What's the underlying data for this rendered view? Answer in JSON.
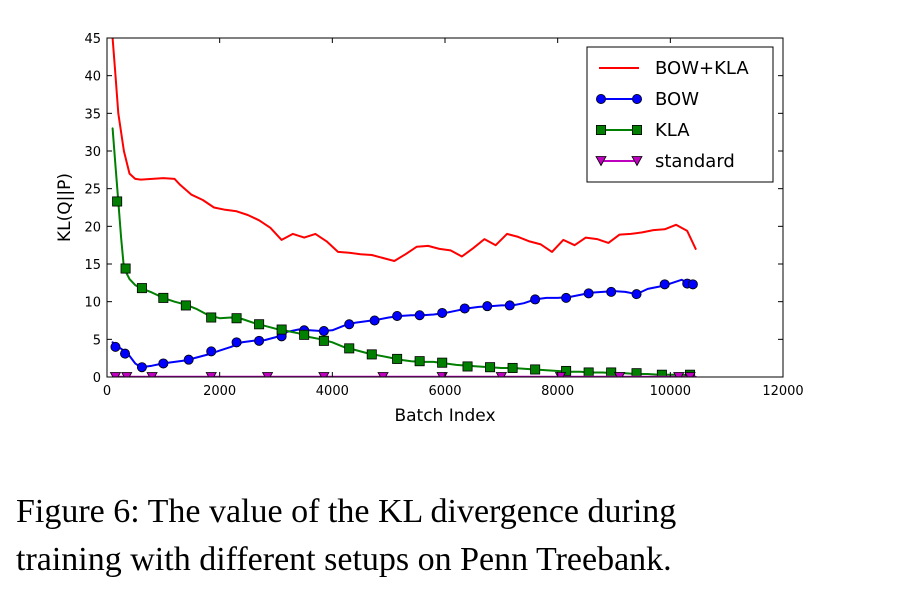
{
  "caption": {
    "line1": "Figure 6: The value of the KL divergence during",
    "line2": "training with different setups on Penn Treebank."
  },
  "chart_data": {
    "type": "line",
    "xlabel": "Batch Index",
    "ylabel": "KL(Q||P)",
    "xlim": [
      0,
      12000
    ],
    "ylim": [
      0,
      45
    ],
    "xticks": [
      0,
      2000,
      4000,
      6000,
      8000,
      10000,
      12000
    ],
    "yticks": [
      0,
      5,
      10,
      15,
      20,
      25,
      30,
      35,
      40,
      45
    ],
    "grid": false,
    "legend_position": "top-right",
    "series": [
      {
        "name": "BOW+KLA",
        "color": "#ff0000",
        "marker": "none",
        "x": [
          100,
          150,
          200,
          300,
          400,
          500,
          600,
          800,
          1000,
          1200,
          1300,
          1500,
          1700,
          1900,
          2100,
          2300,
          2500,
          2700,
          2900,
          3100,
          3300,
          3500,
          3700,
          3900,
          4100,
          4300,
          4500,
          4700,
          4900,
          5100,
          5300,
          5500,
          5700,
          5900,
          6100,
          6300,
          6500,
          6700,
          6900,
          7100,
          7300,
          7500,
          7700,
          7900,
          8100,
          8300,
          8500,
          8700,
          8900,
          9100,
          9300,
          9500,
          9700,
          9900,
          10100,
          10300,
          10450
        ],
        "y": [
          45,
          40,
          35,
          30,
          27,
          26.3,
          26.2,
          26.3,
          26.4,
          26.3,
          25.5,
          24.2,
          23.5,
          22.5,
          22.2,
          22.0,
          21.5,
          20.8,
          19.8,
          18.2,
          19.0,
          18.5,
          19.0,
          18.0,
          16.6,
          16.5,
          16.3,
          16.2,
          15.8,
          15.4,
          16.3,
          17.3,
          17.4,
          17.0,
          16.8,
          16.0,
          17.1,
          18.3,
          17.5,
          19.0,
          18.6,
          18.0,
          17.6,
          16.6,
          18.2,
          17.5,
          18.5,
          18.3,
          17.8,
          18.9,
          19.0,
          19.2,
          19.5,
          19.6,
          20.2,
          19.4,
          17.0
        ]
      },
      {
        "name": "BOW",
        "color": "#0000ff",
        "marker": "circle",
        "x": [
          100,
          200,
          300,
          400,
          500,
          600,
          800,
          1000,
          1200,
          1400,
          1600,
          1800,
          2000,
          2200,
          2400,
          2600,
          2800,
          3000,
          3200,
          3400,
          3600,
          3800,
          4000,
          4200,
          4400,
          4600,
          4800,
          5000,
          5200,
          5400,
          5600,
          5800,
          6000,
          6200,
          6400,
          6600,
          6800,
          7000,
          7200,
          7400,
          7600,
          7800,
          8000,
          8200,
          8400,
          8600,
          8800,
          9000,
          9200,
          9400,
          9600,
          9800,
          10000,
          10200,
          10300,
          10400
        ],
        "y": [
          4.6,
          4.0,
          3.5,
          2.8,
          1.8,
          1.3,
          1.5,
          1.8,
          2.0,
          2.2,
          2.6,
          3.0,
          3.5,
          4.0,
          4.6,
          4.8,
          4.9,
          5.3,
          6.0,
          6.3,
          6.2,
          6.1,
          6.2,
          6.8,
          7.2,
          7.4,
          7.6,
          7.9,
          8.1,
          8.2,
          8.2,
          8.3,
          8.5,
          8.8,
          9.1,
          9.3,
          9.4,
          9.5,
          9.5,
          9.8,
          10.3,
          10.5,
          10.5,
          10.6,
          10.9,
          11.2,
          11.3,
          11.4,
          11.3,
          11.0,
          11.7,
          12.0,
          12.4,
          12.9,
          12.5,
          12.3
        ],
        "marker_x": [
          150,
          320,
          620,
          1000,
          1450,
          1850,
          2300,
          2700,
          3100,
          3500,
          3850,
          4300,
          4750,
          5150,
          5550,
          5950,
          6350,
          6750,
          7150,
          7600,
          8150,
          8550,
          8950,
          9400,
          9900,
          10300,
          10400
        ],
        "marker_y": [
          4.0,
          3.1,
          1.3,
          1.8,
          2.3,
          3.4,
          4.6,
          4.8,
          5.4,
          6.2,
          6.1,
          7.0,
          7.5,
          8.1,
          8.2,
          8.5,
          9.1,
          9.4,
          9.5,
          10.3,
          10.5,
          11.1,
          11.3,
          11.0,
          12.3,
          12.4,
          12.3
        ]
      },
      {
        "name": "KLA",
        "color": "#007f00",
        "marker": "square",
        "x": [
          100,
          150,
          200,
          250,
          300,
          400,
          500,
          600,
          800,
          1000,
          1200,
          1400,
          1600,
          1800,
          2000,
          2200,
          2400,
          2600,
          2800,
          3000,
          3200,
          3400,
          3600,
          3800,
          4000,
          4200,
          4400,
          4600,
          4800,
          5000,
          5200,
          5400,
          5600,
          5800,
          6000,
          6200,
          6400,
          6600,
          6800,
          7000,
          7200,
          7400,
          7600,
          7800,
          8000,
          8200,
          8400,
          8600,
          8800,
          9000,
          9200,
          9400,
          9600,
          9800,
          10000,
          10200,
          10400
        ],
        "y": [
          33,
          28,
          23.3,
          18.5,
          14.5,
          13.0,
          12.2,
          11.8,
          11.2,
          10.5,
          10.0,
          9.6,
          9.0,
          8.2,
          7.8,
          7.9,
          7.7,
          7.2,
          6.8,
          6.4,
          6.1,
          5.8,
          5.3,
          5.0,
          4.6,
          4.0,
          3.6,
          3.2,
          2.9,
          2.6,
          2.3,
          2.1,
          2.0,
          2.0,
          1.8,
          1.6,
          1.5,
          1.4,
          1.3,
          1.2,
          1.2,
          1.1,
          1.0,
          0.9,
          0.8,
          0.7,
          0.7,
          0.6,
          0.6,
          0.5,
          0.5,
          0.4,
          0.4,
          0.3,
          0.3,
          0.3,
          0.2
        ],
        "marker_x": [
          180,
          330,
          620,
          1000,
          1400,
          1850,
          2300,
          2700,
          3100,
          3500,
          3850,
          4300,
          4700,
          5150,
          5550,
          5950,
          6400,
          6800,
          7200,
          7600,
          8150,
          8550,
          8950,
          9400,
          9850,
          10350
        ],
        "marker_y": [
          23.3,
          14.4,
          11.8,
          10.5,
          9.5,
          7.9,
          7.8,
          7.0,
          6.3,
          5.6,
          4.8,
          3.8,
          3.0,
          2.4,
          2.1,
          1.9,
          1.4,
          1.3,
          1.2,
          1.0,
          0.8,
          0.6,
          0.6,
          0.5,
          0.3,
          0.3
        ]
      },
      {
        "name": "standard",
        "color": "#bf00bf",
        "marker": "triangle-down",
        "x": [
          150,
          10450
        ],
        "y": [
          0.02,
          0.02
        ],
        "marker_x": [
          150,
          350,
          800,
          1850,
          2850,
          3850,
          4900,
          5950,
          7000,
          8050,
          9100,
          10150,
          10350
        ],
        "marker_y": [
          0,
          0,
          0,
          0,
          0,
          0,
          0,
          0,
          0,
          0,
          0,
          0,
          0
        ]
      }
    ]
  }
}
